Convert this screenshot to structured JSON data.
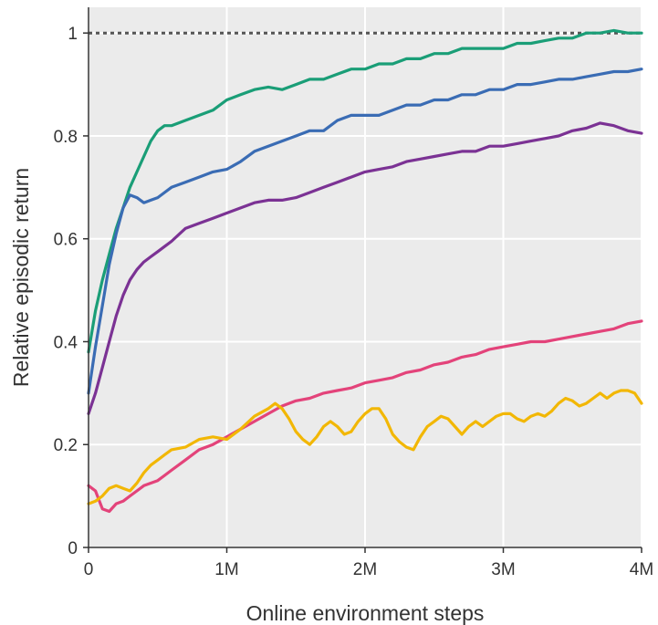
{
  "chart_data": {
    "type": "line",
    "title": "",
    "xlabel": "Online environment steps",
    "ylabel": "Relative episodic return",
    "xlim": [
      0,
      4000000
    ],
    "ylim": [
      0,
      1.05
    ],
    "x_ticks": [
      {
        "value": 0,
        "label": "0"
      },
      {
        "value": 1000000,
        "label": "1M"
      },
      {
        "value": 2000000,
        "label": "2M"
      },
      {
        "value": 3000000,
        "label": "3M"
      },
      {
        "value": 4000000,
        "label": "4M"
      }
    ],
    "y_ticks": [
      {
        "value": 0,
        "label": "0"
      },
      {
        "value": 0.2,
        "label": "0.2"
      },
      {
        "value": 0.4,
        "label": "0.4"
      },
      {
        "value": 0.6,
        "label": "0.6"
      },
      {
        "value": 0.8,
        "label": "0.8"
      },
      {
        "value": 1,
        "label": "1"
      }
    ],
    "grid": true,
    "background": "#ebebeb",
    "reference_line": {
      "y": 1,
      "style": "dotted",
      "color": "#555555"
    },
    "series": [
      {
        "color": "#1a9e77",
        "points": [
          [
            0,
            0.38
          ],
          [
            50000,
            0.46
          ],
          [
            100000,
            0.52
          ],
          [
            150000,
            0.57
          ],
          [
            200000,
            0.62
          ],
          [
            250000,
            0.66
          ],
          [
            300000,
            0.7
          ],
          [
            350000,
            0.73
          ],
          [
            400000,
            0.76
          ],
          [
            450000,
            0.79
          ],
          [
            500000,
            0.81
          ],
          [
            550000,
            0.82
          ],
          [
            600000,
            0.82
          ],
          [
            700000,
            0.83
          ],
          [
            800000,
            0.84
          ],
          [
            900000,
            0.85
          ],
          [
            1000000,
            0.87
          ],
          [
            1100000,
            0.88
          ],
          [
            1200000,
            0.89
          ],
          [
            1300000,
            0.895
          ],
          [
            1400000,
            0.89
          ],
          [
            1500000,
            0.9
          ],
          [
            1600000,
            0.91
          ],
          [
            1700000,
            0.91
          ],
          [
            1800000,
            0.92
          ],
          [
            1900000,
            0.93
          ],
          [
            2000000,
            0.93
          ],
          [
            2100000,
            0.94
          ],
          [
            2200000,
            0.94
          ],
          [
            2300000,
            0.95
          ],
          [
            2400000,
            0.95
          ],
          [
            2500000,
            0.96
          ],
          [
            2600000,
            0.96
          ],
          [
            2700000,
            0.97
          ],
          [
            2800000,
            0.97
          ],
          [
            2900000,
            0.97
          ],
          [
            3000000,
            0.97
          ],
          [
            3100000,
            0.98
          ],
          [
            3200000,
            0.98
          ],
          [
            3300000,
            0.985
          ],
          [
            3400000,
            0.99
          ],
          [
            3500000,
            0.99
          ],
          [
            3600000,
            1.0
          ],
          [
            3700000,
            1.0
          ],
          [
            3800000,
            1.005
          ],
          [
            3900000,
            1.0
          ],
          [
            4000000,
            1.0
          ]
        ]
      },
      {
        "color": "#3a6cb4",
        "points": [
          [
            0,
            0.3
          ],
          [
            50000,
            0.39
          ],
          [
            100000,
            0.47
          ],
          [
            150000,
            0.55
          ],
          [
            200000,
            0.61
          ],
          [
            250000,
            0.66
          ],
          [
            300000,
            0.685
          ],
          [
            350000,
            0.68
          ],
          [
            400000,
            0.67
          ],
          [
            450000,
            0.675
          ],
          [
            500000,
            0.68
          ],
          [
            550000,
            0.69
          ],
          [
            600000,
            0.7
          ],
          [
            700000,
            0.71
          ],
          [
            800000,
            0.72
          ],
          [
            900000,
            0.73
          ],
          [
            1000000,
            0.735
          ],
          [
            1100000,
            0.75
          ],
          [
            1200000,
            0.77
          ],
          [
            1300000,
            0.78
          ],
          [
            1400000,
            0.79
          ],
          [
            1500000,
            0.8
          ],
          [
            1600000,
            0.81
          ],
          [
            1700000,
            0.81
          ],
          [
            1800000,
            0.83
          ],
          [
            1900000,
            0.84
          ],
          [
            2000000,
            0.84
          ],
          [
            2100000,
            0.84
          ],
          [
            2200000,
            0.85
          ],
          [
            2300000,
            0.86
          ],
          [
            2400000,
            0.86
          ],
          [
            2500000,
            0.87
          ],
          [
            2600000,
            0.87
          ],
          [
            2700000,
            0.88
          ],
          [
            2800000,
            0.88
          ],
          [
            2900000,
            0.89
          ],
          [
            3000000,
            0.89
          ],
          [
            3100000,
            0.9
          ],
          [
            3200000,
            0.9
          ],
          [
            3300000,
            0.905
          ],
          [
            3400000,
            0.91
          ],
          [
            3500000,
            0.91
          ],
          [
            3600000,
            0.915
          ],
          [
            3700000,
            0.92
          ],
          [
            3800000,
            0.925
          ],
          [
            3900000,
            0.925
          ],
          [
            4000000,
            0.93
          ]
        ]
      },
      {
        "color": "#7b3294",
        "points": [
          [
            0,
            0.26
          ],
          [
            50000,
            0.3
          ],
          [
            100000,
            0.35
          ],
          [
            150000,
            0.4
          ],
          [
            200000,
            0.45
          ],
          [
            250000,
            0.49
          ],
          [
            300000,
            0.52
          ],
          [
            350000,
            0.54
          ],
          [
            400000,
            0.555
          ],
          [
            450000,
            0.565
          ],
          [
            500000,
            0.575
          ],
          [
            550000,
            0.585
          ],
          [
            600000,
            0.595
          ],
          [
            700000,
            0.62
          ],
          [
            800000,
            0.63
          ],
          [
            900000,
            0.64
          ],
          [
            1000000,
            0.65
          ],
          [
            1100000,
            0.66
          ],
          [
            1200000,
            0.67
          ],
          [
            1300000,
            0.675
          ],
          [
            1400000,
            0.675
          ],
          [
            1500000,
            0.68
          ],
          [
            1600000,
            0.69
          ],
          [
            1700000,
            0.7
          ],
          [
            1800000,
            0.71
          ],
          [
            1900000,
            0.72
          ],
          [
            2000000,
            0.73
          ],
          [
            2100000,
            0.735
          ],
          [
            2200000,
            0.74
          ],
          [
            2300000,
            0.75
          ],
          [
            2400000,
            0.755
          ],
          [
            2500000,
            0.76
          ],
          [
            2600000,
            0.765
          ],
          [
            2700000,
            0.77
          ],
          [
            2800000,
            0.77
          ],
          [
            2900000,
            0.78
          ],
          [
            3000000,
            0.78
          ],
          [
            3100000,
            0.785
          ],
          [
            3200000,
            0.79
          ],
          [
            3300000,
            0.795
          ],
          [
            3400000,
            0.8
          ],
          [
            3500000,
            0.81
          ],
          [
            3600000,
            0.815
          ],
          [
            3700000,
            0.825
          ],
          [
            3800000,
            0.82
          ],
          [
            3900000,
            0.81
          ],
          [
            4000000,
            0.805
          ]
        ]
      },
      {
        "color": "#e3437a",
        "points": [
          [
            0,
            0.12
          ],
          [
            50000,
            0.11
          ],
          [
            100000,
            0.075
          ],
          [
            150000,
            0.07
          ],
          [
            200000,
            0.085
          ],
          [
            250000,
            0.09
          ],
          [
            300000,
            0.1
          ],
          [
            350000,
            0.11
          ],
          [
            400000,
            0.12
          ],
          [
            450000,
            0.125
          ],
          [
            500000,
            0.13
          ],
          [
            550000,
            0.14
          ],
          [
            600000,
            0.15
          ],
          [
            700000,
            0.17
          ],
          [
            800000,
            0.19
          ],
          [
            900000,
            0.2
          ],
          [
            1000000,
            0.215
          ],
          [
            1100000,
            0.23
          ],
          [
            1200000,
            0.245
          ],
          [
            1300000,
            0.26
          ],
          [
            1400000,
            0.275
          ],
          [
            1500000,
            0.285
          ],
          [
            1600000,
            0.29
          ],
          [
            1700000,
            0.3
          ],
          [
            1800000,
            0.305
          ],
          [
            1900000,
            0.31
          ],
          [
            2000000,
            0.32
          ],
          [
            2100000,
            0.325
          ],
          [
            2200000,
            0.33
          ],
          [
            2300000,
            0.34
          ],
          [
            2400000,
            0.345
          ],
          [
            2500000,
            0.355
          ],
          [
            2600000,
            0.36
          ],
          [
            2700000,
            0.37
          ],
          [
            2800000,
            0.375
          ],
          [
            2900000,
            0.385
          ],
          [
            3000000,
            0.39
          ],
          [
            3100000,
            0.395
          ],
          [
            3200000,
            0.4
          ],
          [
            3300000,
            0.4
          ],
          [
            3400000,
            0.405
          ],
          [
            3500000,
            0.41
          ],
          [
            3600000,
            0.415
          ],
          [
            3700000,
            0.42
          ],
          [
            3800000,
            0.425
          ],
          [
            3900000,
            0.435
          ],
          [
            4000000,
            0.44
          ]
        ]
      },
      {
        "color": "#f2b705",
        "points": [
          [
            0,
            0.085
          ],
          [
            50000,
            0.09
          ],
          [
            100000,
            0.1
          ],
          [
            150000,
            0.115
          ],
          [
            200000,
            0.12
          ],
          [
            250000,
            0.115
          ],
          [
            300000,
            0.11
          ],
          [
            350000,
            0.125
          ],
          [
            400000,
            0.145
          ],
          [
            450000,
            0.16
          ],
          [
            500000,
            0.17
          ],
          [
            550000,
            0.18
          ],
          [
            600000,
            0.19
          ],
          [
            700000,
            0.195
          ],
          [
            800000,
            0.21
          ],
          [
            900000,
            0.215
          ],
          [
            1000000,
            0.21
          ],
          [
            1100000,
            0.23
          ],
          [
            1200000,
            0.255
          ],
          [
            1300000,
            0.27
          ],
          [
            1350000,
            0.28
          ],
          [
            1400000,
            0.27
          ],
          [
            1450000,
            0.25
          ],
          [
            1500000,
            0.225
          ],
          [
            1550000,
            0.21
          ],
          [
            1600000,
            0.2
          ],
          [
            1650000,
            0.215
          ],
          [
            1700000,
            0.235
          ],
          [
            1750000,
            0.245
          ],
          [
            1800000,
            0.235
          ],
          [
            1850000,
            0.22
          ],
          [
            1900000,
            0.225
          ],
          [
            1950000,
            0.245
          ],
          [
            2000000,
            0.26
          ],
          [
            2050000,
            0.27
          ],
          [
            2100000,
            0.27
          ],
          [
            2150000,
            0.25
          ],
          [
            2200000,
            0.22
          ],
          [
            2250000,
            0.205
          ],
          [
            2300000,
            0.195
          ],
          [
            2350000,
            0.19
          ],
          [
            2400000,
            0.215
          ],
          [
            2450000,
            0.235
          ],
          [
            2500000,
            0.245
          ],
          [
            2550000,
            0.255
          ],
          [
            2600000,
            0.25
          ],
          [
            2650000,
            0.235
          ],
          [
            2700000,
            0.22
          ],
          [
            2750000,
            0.235
          ],
          [
            2800000,
            0.245
          ],
          [
            2850000,
            0.235
          ],
          [
            2900000,
            0.245
          ],
          [
            2950000,
            0.255
          ],
          [
            3000000,
            0.26
          ],
          [
            3050000,
            0.26
          ],
          [
            3100000,
            0.25
          ],
          [
            3150000,
            0.245
          ],
          [
            3200000,
            0.255
          ],
          [
            3250000,
            0.26
          ],
          [
            3300000,
            0.255
          ],
          [
            3350000,
            0.265
          ],
          [
            3400000,
            0.28
          ],
          [
            3450000,
            0.29
          ],
          [
            3500000,
            0.285
          ],
          [
            3550000,
            0.275
          ],
          [
            3600000,
            0.28
          ],
          [
            3650000,
            0.29
          ],
          [
            3700000,
            0.3
          ],
          [
            3750000,
            0.29
          ],
          [
            3800000,
            0.3
          ],
          [
            3850000,
            0.305
          ],
          [
            3900000,
            0.305
          ],
          [
            3950000,
            0.3
          ],
          [
            4000000,
            0.28
          ]
        ]
      }
    ]
  }
}
